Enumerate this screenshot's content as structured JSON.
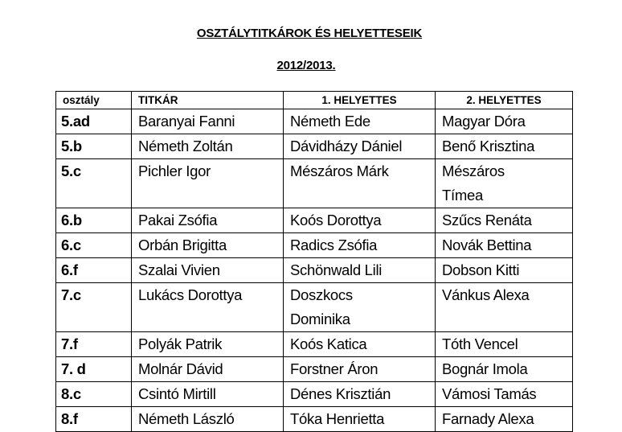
{
  "document": {
    "title": "OSZTÁLYTITKÁROK  ÉS HELYETTESEIK",
    "year": "2012/2013."
  },
  "table": {
    "headers": [
      "osztály",
      "TITKÁR",
      "1.  HELYETTES",
      "2.  HELYETTES"
    ],
    "rows": [
      [
        "5.ad",
        "Baranyai Fanni",
        "Németh Ede",
        "Magyar Dóra"
      ],
      [
        "5.b",
        "Németh Zoltán",
        "Dávidházy Dániel",
        "Benő Krisztina"
      ],
      [
        "5.c",
        "Pichler Igor",
        "Mészáros Márk",
        "Mészáros Tímea"
      ],
      [
        "6.b",
        "Pakai Zsófia",
        "Koós Dorottya",
        "Szűcs Renáta"
      ],
      [
        "6.c",
        "Orbán Brigitta",
        "Radics Zsófia",
        "Novák Bettina"
      ],
      [
        "6.f",
        "Szalai Vivien",
        "Schönwald Lili",
        "Dobson Kitti"
      ],
      [
        "7.c",
        "Lukács Dorottya",
        "Doszkocs Dominika",
        "Vánkus Alexa"
      ],
      [
        "7.f",
        "Polyák Patrik",
        "Koós Katica",
        "Tóth Vencel"
      ],
      [
        "7. d",
        "Molnár Dávid",
        "Forstner Áron",
        "Bognár Imola"
      ],
      [
        "8.c",
        "Csintó Mirtill",
        "Dénes Krisztián",
        "Vámosi Tamás"
      ],
      [
        "8.f",
        "Németh László",
        "Tóka Henrietta",
        "Farnady Alexa"
      ]
    ]
  }
}
